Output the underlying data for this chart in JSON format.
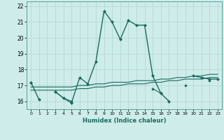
{
  "xlabel": "Humidex (Indice chaleur)",
  "background_color": "#ceecea",
  "grid_color": "#b8dcd8",
  "line_color": "#1a6b5e",
  "x_values": [
    0,
    1,
    2,
    3,
    4,
    5,
    6,
    7,
    8,
    9,
    10,
    11,
    12,
    13,
    14,
    15,
    16,
    17,
    18,
    19,
    20,
    21,
    22,
    23
  ],
  "line1": [
    17.2,
    16.1,
    null,
    16.6,
    16.2,
    15.9,
    17.5,
    17.1,
    18.5,
    21.7,
    21.0,
    19.9,
    21.1,
    20.8,
    20.8,
    17.6,
    16.5,
    16.0,
    null,
    null,
    17.6,
    17.5,
    17.4,
    17.4
  ],
  "line2": [
    17.2,
    null,
    null,
    16.6,
    16.2,
    16.0,
    null,
    null,
    null,
    null,
    null,
    null,
    null,
    null,
    null,
    16.8,
    16.5,
    null,
    null,
    17.0,
    null,
    null,
    17.3,
    null
  ],
  "line3": [
    16.9,
    16.9,
    16.9,
    16.9,
    16.9,
    16.9,
    17.0,
    17.0,
    17.1,
    17.1,
    17.2,
    17.2,
    17.2,
    17.3,
    17.3,
    17.3,
    17.4,
    17.4,
    17.5,
    17.5,
    17.6,
    17.6,
    17.7,
    17.7
  ],
  "line4": [
    16.7,
    16.7,
    16.7,
    16.7,
    16.7,
    16.7,
    16.8,
    16.8,
    16.9,
    16.9,
    17.0,
    17.0,
    17.1,
    17.1,
    17.1,
    17.2,
    17.2,
    17.3,
    17.3,
    17.4,
    17.4,
    17.4,
    17.5,
    17.5
  ],
  "ylim": [
    15.5,
    22.3
  ],
  "xlim": [
    -0.5,
    23.5
  ],
  "yticks": [
    16,
    17,
    18,
    19,
    20,
    21,
    22
  ],
  "xticks": [
    0,
    1,
    2,
    3,
    4,
    5,
    6,
    7,
    8,
    9,
    10,
    11,
    12,
    13,
    14,
    15,
    16,
    17,
    18,
    19,
    20,
    21,
    22,
    23
  ]
}
